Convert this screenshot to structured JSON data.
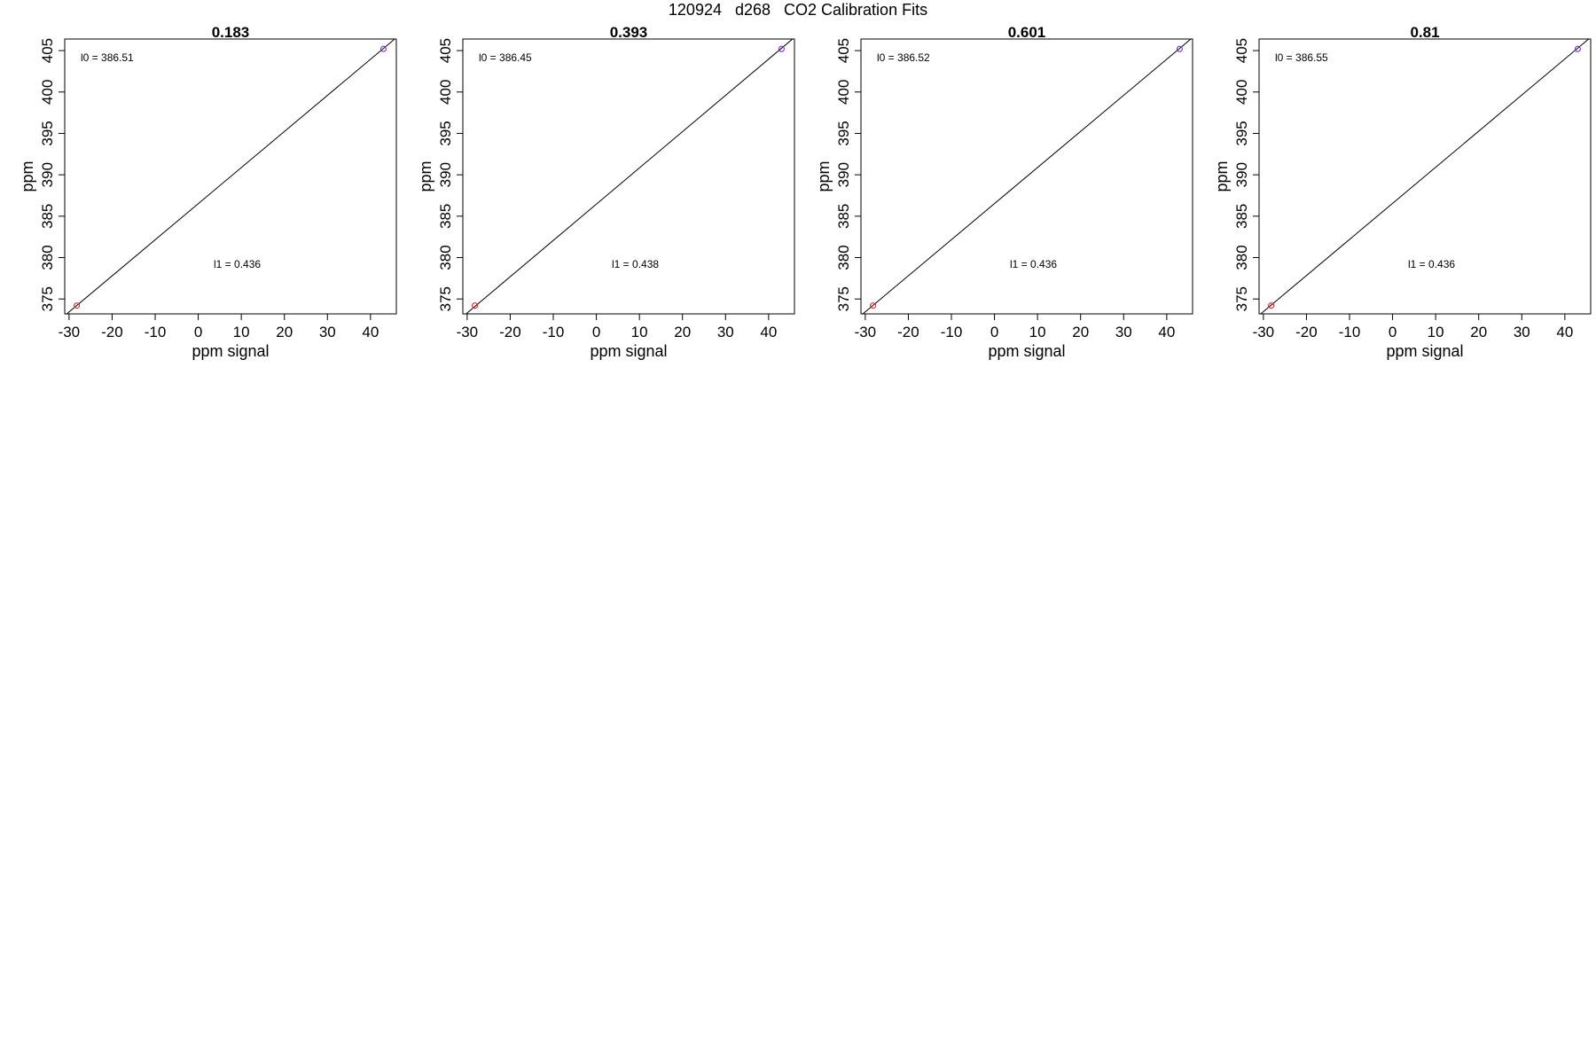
{
  "page": {
    "title": "120924   d268   CO2 Calibration Fits"
  },
  "colors": {
    "frame": "#000000",
    "fit_line": "#000000",
    "low_point": "#d62728",
    "high_point": "#7b2fd6"
  },
  "chart_data": [
    {
      "type": "scatter",
      "title": "0.183",
      "xlabel": "ppm signal",
      "ylabel": "ppm",
      "xlim": [
        -31,
        46
      ],
      "ylim": [
        373.2,
        406.4
      ],
      "xticks": [
        -30,
        -20,
        -10,
        0,
        10,
        20,
        30,
        40
      ],
      "yticks": [
        375,
        380,
        385,
        390,
        395,
        400,
        405
      ],
      "points": [
        {
          "x": -28.2,
          "y": 374.2
        },
        {
          "x": 43.0,
          "y": 405.2
        }
      ],
      "fit": {
        "intercept": 386.51,
        "slope": 0.436
      },
      "annotations": {
        "l0_label": "l0 =",
        "l0_value": "386.51",
        "l1_label": "l1 =",
        "l1_value": "0.436"
      },
      "grid": false
    },
    {
      "type": "scatter",
      "title": "0.393",
      "xlabel": "ppm signal",
      "ylabel": "ppm",
      "xlim": [
        -31,
        46
      ],
      "ylim": [
        373.2,
        406.4
      ],
      "xticks": [
        -30,
        -20,
        -10,
        0,
        10,
        20,
        30,
        40
      ],
      "yticks": [
        375,
        380,
        385,
        390,
        395,
        400,
        405
      ],
      "points": [
        {
          "x": -28.2,
          "y": 374.2
        },
        {
          "x": 43.0,
          "y": 405.2
        }
      ],
      "fit": {
        "intercept": 386.45,
        "slope": 0.438
      },
      "annotations": {
        "l0_label": "l0 =",
        "l0_value": "386.45",
        "l1_label": "l1 =",
        "l1_value": "0.438"
      },
      "grid": false
    },
    {
      "type": "scatter",
      "title": "0.601",
      "xlabel": "ppm signal",
      "ylabel": "ppm",
      "xlim": [
        -31,
        46
      ],
      "ylim": [
        373.2,
        406.4
      ],
      "xticks": [
        -30,
        -20,
        -10,
        0,
        10,
        20,
        30,
        40
      ],
      "yticks": [
        375,
        380,
        385,
        390,
        395,
        400,
        405
      ],
      "points": [
        {
          "x": -28.2,
          "y": 374.2
        },
        {
          "x": 43.0,
          "y": 405.2
        }
      ],
      "fit": {
        "intercept": 386.52,
        "slope": 0.436
      },
      "annotations": {
        "l0_label": "l0 =",
        "l0_value": "386.52",
        "l1_label": "l1 =",
        "l1_value": "0.436"
      },
      "grid": false
    },
    {
      "type": "scatter",
      "title": "0.81",
      "xlabel": "ppm signal",
      "ylabel": "ppm",
      "xlim": [
        -31,
        46
      ],
      "ylim": [
        373.2,
        406.4
      ],
      "xticks": [
        -30,
        -20,
        -10,
        0,
        10,
        20,
        30,
        40
      ],
      "yticks": [
        375,
        380,
        385,
        390,
        395,
        400,
        405
      ],
      "points": [
        {
          "x": -28.2,
          "y": 374.2
        },
        {
          "x": 43.0,
          "y": 405.2
        }
      ],
      "fit": {
        "intercept": 386.55,
        "slope": 0.436
      },
      "annotations": {
        "l0_label": "l0 =",
        "l0_value": "386.55",
        "l1_label": "l1 =",
        "l1_value": "0.436"
      },
      "grid": false
    }
  ]
}
